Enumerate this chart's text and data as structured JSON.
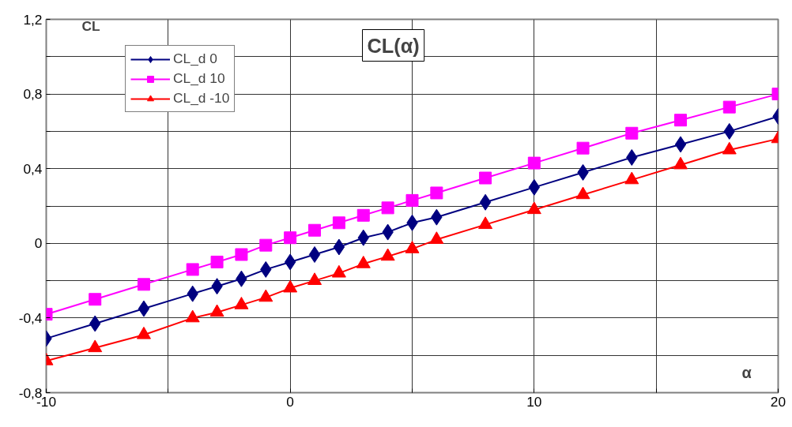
{
  "chart_data": {
    "type": "line",
    "title": "CL(α)",
    "xlabel": "α",
    "ylabel": "CL",
    "x": [
      -10,
      -8,
      -6,
      -4,
      -3,
      -2,
      -1,
      0,
      1,
      2,
      3,
      4,
      5,
      6,
      8,
      10,
      12,
      14,
      16,
      18,
      20
    ],
    "series": [
      {
        "name": "CL_d 0",
        "color": "#000080",
        "marker": "diamond",
        "values": [
          -0.51,
          -0.43,
          -0.35,
          -0.27,
          -0.23,
          -0.19,
          -0.14,
          -0.1,
          -0.06,
          -0.02,
          0.03,
          0.06,
          0.11,
          0.14,
          0.22,
          0.3,
          0.38,
          0.46,
          0.53,
          0.6,
          0.68
        ]
      },
      {
        "name": "CL_d 10",
        "color": "#ff00ff",
        "marker": "square",
        "values": [
          -0.38,
          -0.3,
          -0.22,
          -0.14,
          -0.1,
          -0.06,
          -0.01,
          0.03,
          0.07,
          0.11,
          0.15,
          0.19,
          0.23,
          0.27,
          0.35,
          0.43,
          0.51,
          0.59,
          0.66,
          0.73,
          0.8
        ]
      },
      {
        "name": "CL_d -10",
        "color": "#ff0000",
        "marker": "triangle",
        "values": [
          -0.63,
          -0.56,
          -0.49,
          -0.4,
          -0.37,
          -0.33,
          -0.29,
          -0.24,
          -0.2,
          -0.16,
          -0.11,
          -0.07,
          -0.03,
          0.02,
          0.1,
          0.18,
          0.26,
          0.34,
          0.42,
          0.5,
          0.56
        ]
      }
    ],
    "xlim": [
      -10,
      20
    ],
    "ylim": [
      -0.8,
      1.2
    ],
    "xticks": [
      {
        "value": -10,
        "label": "-10"
      },
      {
        "value": -5,
        "label": null
      },
      {
        "value": 0,
        "label": "0"
      },
      {
        "value": 5,
        "label": null
      },
      {
        "value": 10,
        "label": "10"
      },
      {
        "value": 15,
        "label": null
      },
      {
        "value": 20,
        "label": "20"
      }
    ],
    "yticks": [
      {
        "value": -0.8,
        "label": "-0,8"
      },
      {
        "value": -0.6,
        "label": null
      },
      {
        "value": -0.4,
        "label": "-0,4"
      },
      {
        "value": -0.2,
        "label": null
      },
      {
        "value": 0,
        "label": "0"
      },
      {
        "value": 0.2,
        "label": null
      },
      {
        "value": 0.4,
        "label": "0,4"
      },
      {
        "value": 0.6,
        "label": null
      },
      {
        "value": 0.8,
        "label": "0,8"
      },
      {
        "value": 1.0,
        "label": null
      },
      {
        "value": 1.2,
        "label": "1,2"
      }
    ],
    "grid": true,
    "legend": "top left",
    "line_style": "solid"
  }
}
